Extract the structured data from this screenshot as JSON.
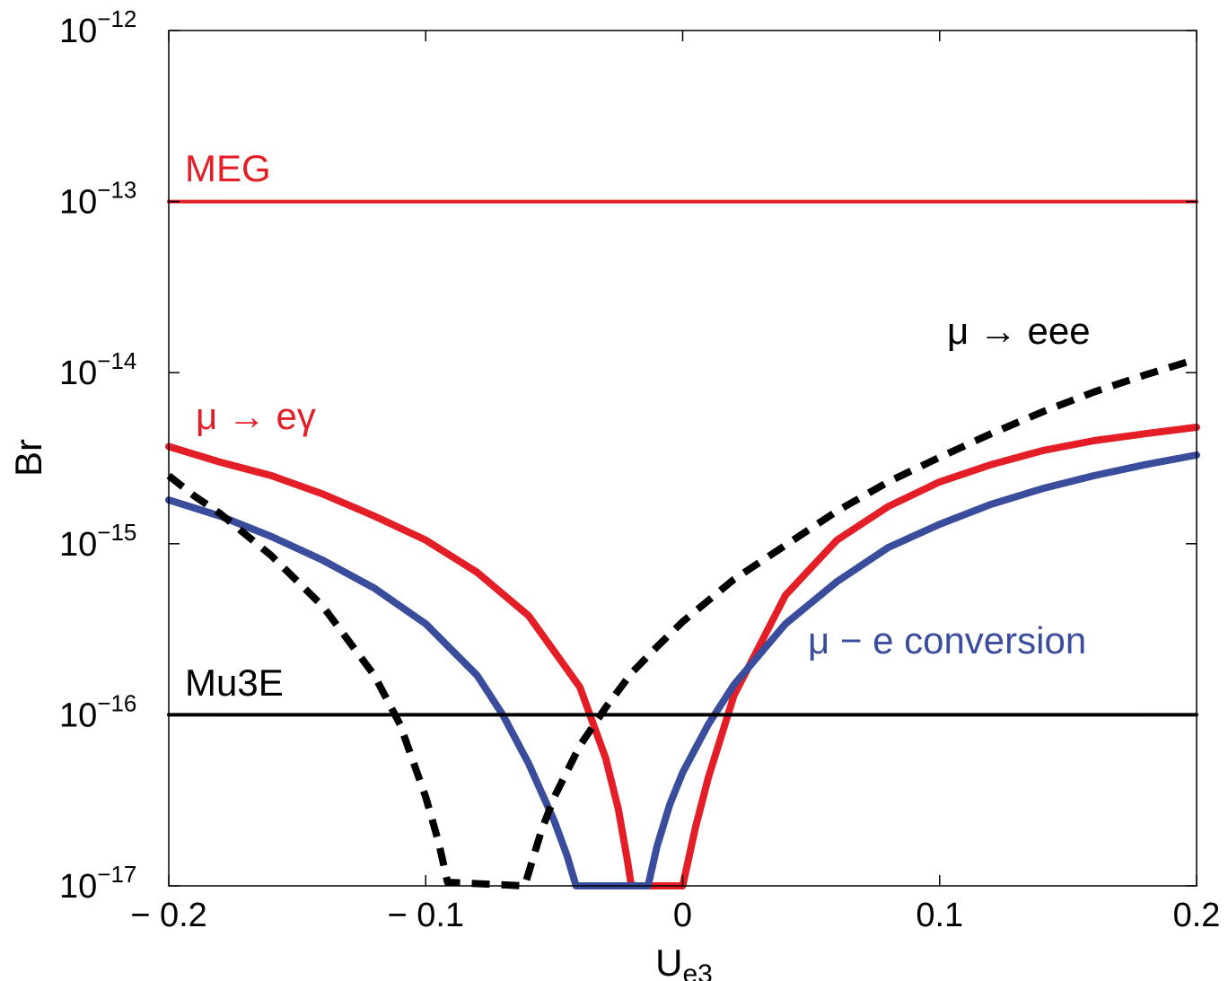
{
  "chart_data": {
    "type": "line",
    "xlabel": "U",
    "xlabel_sub": "e3",
    "ylabel": "Br",
    "xlim": [
      -0.2,
      0.2
    ],
    "ylim": [
      1e-17,
      1e-12
    ],
    "y_scale": "log",
    "grid": false,
    "x_ticks": [
      -0.2,
      -0.1,
      0,
      0.1,
      0.2
    ],
    "x_tick_labels": [
      "− 0.2",
      "− 0.1",
      "0",
      "0.1",
      "0.2"
    ],
    "y_ticks": [
      -17,
      -16,
      -15,
      -14,
      -13,
      -12
    ],
    "y_tick_labels": [
      {
        "base": "10",
        "exp": "−17"
      },
      {
        "base": "10",
        "exp": "−16"
      },
      {
        "base": "10",
        "exp": "−15"
      },
      {
        "base": "10",
        "exp": "−14"
      },
      {
        "base": "10",
        "exp": "−13"
      },
      {
        "base": "10",
        "exp": "−12"
      }
    ],
    "series": [
      {
        "name": "μ → eγ",
        "color": "#e41e26",
        "style": "solid",
        "x": [
          -0.2,
          -0.18,
          -0.16,
          -0.14,
          -0.12,
          -0.1,
          -0.08,
          -0.06,
          -0.04,
          -0.03,
          -0.025,
          -0.0215,
          -0.02,
          0,
          0.005,
          0.01,
          0.02,
          0.04,
          0.06,
          0.08,
          0.1,
          0.12,
          0.14,
          0.16,
          0.18,
          0.2
        ],
        "y": [
          3.7e-15,
          3e-15,
          2.5e-15,
          1.95e-15,
          1.45e-15,
          1.05e-15,
          6.8e-16,
          3.8e-16,
          1.45e-16,
          5.6e-17,
          2.8e-17,
          1.4e-17,
          1e-17,
          1e-17,
          2.2e-17,
          4.3e-17,
          1.3e-16,
          5e-16,
          1.05e-15,
          1.65e-15,
          2.3e-15,
          2.9e-15,
          3.5e-15,
          4e-15,
          4.4e-15,
          4.8e-15
        ]
      },
      {
        "name": "μ −  e conversion",
        "color": "#3a4c9c",
        "style": "solid",
        "x": [
          -0.2,
          -0.18,
          -0.16,
          -0.14,
          -0.12,
          -0.1,
          -0.08,
          -0.07,
          -0.06,
          -0.05,
          -0.045,
          -0.0415,
          -0.0135,
          -0.01,
          -0.005,
          0,
          0.01,
          0.02,
          0.04,
          0.06,
          0.08,
          0.1,
          0.12,
          0.14,
          0.16,
          0.18,
          0.2
        ],
        "y": [
          1.8e-15,
          1.45e-15,
          1.1e-15,
          8e-16,
          5.5e-16,
          3.4e-16,
          1.7e-16,
          1e-16,
          5.2e-17,
          2.4e-17,
          1.5e-17,
          1e-17,
          1e-17,
          1.7e-17,
          3e-17,
          4.6e-17,
          8.8e-17,
          1.5e-16,
          3.4e-16,
          6e-16,
          9.5e-16,
          1.3e-15,
          1.7e-15,
          2.1e-15,
          2.5e-15,
          2.9e-15,
          3.3e-15
        ]
      },
      {
        "name": "μ → eee",
        "color": "#000000",
        "style": "dashed",
        "x": [
          -0.2,
          -0.19,
          -0.18,
          -0.16,
          -0.14,
          -0.12,
          -0.11,
          -0.1,
          -0.095,
          -0.0915,
          -0.0615,
          -0.055,
          -0.05,
          -0.04,
          -0.03,
          -0.02,
          -0.01,
          0,
          0.02,
          0.04,
          0.06,
          0.08,
          0.1,
          0.12,
          0.14,
          0.16,
          0.18,
          0.2
        ],
        "y": [
          2.5e-15,
          1.9e-15,
          1.5e-15,
          8.5e-16,
          4.3e-16,
          1.7e-16,
          8.8e-17,
          3.3e-17,
          1.8e-17,
          1.05e-17,
          1e-17,
          2.1e-17,
          3.3e-17,
          6.6e-17,
          1.1e-16,
          1.75e-16,
          2.5e-16,
          3.5e-16,
          6.2e-16,
          9.8e-16,
          1.55e-15,
          2.3e-15,
          3.2e-15,
          4.4e-15,
          5.9e-15,
          7.7e-15,
          9.7e-15,
          1.2e-14
        ]
      },
      {
        "name": "MEG",
        "color": "#e41e26",
        "style": "solid",
        "x": [
          -0.2,
          0.2
        ],
        "y": [
          1e-13,
          1e-13
        ]
      },
      {
        "name": "Mu3E",
        "color": "#000000",
        "style": "solid",
        "x": [
          -0.2,
          0.2
        ],
        "y": [
          1e-16,
          1e-16
        ]
      }
    ],
    "annotations": [
      {
        "id": "meg",
        "text": "MEG",
        "color": "#e41e26"
      },
      {
        "id": "mueg",
        "text": "μ → eγ",
        "color": "#e41e26"
      },
      {
        "id": "mueee",
        "text": "μ → eee",
        "color": "#000000"
      },
      {
        "id": "mueconv",
        "text": "μ −  e conversion",
        "color": "#3a4c9c"
      },
      {
        "id": "mu3e",
        "text": "Mu3E",
        "color": "#000000"
      }
    ]
  }
}
